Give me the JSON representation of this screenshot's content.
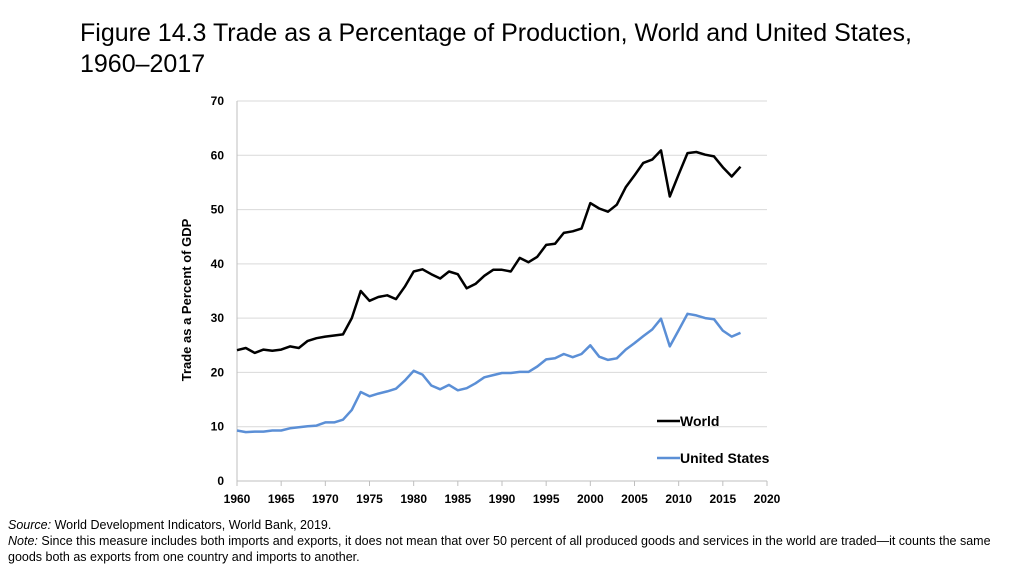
{
  "title_line1": "Figure 14.3 Trade as a Percentage of Production, World and United States,",
  "title_line2": "1960–2017",
  "footer": {
    "source_label": "Source:",
    "source_text": "World Development Indicators, World Bank, 2019.",
    "note_label": "Note:",
    "note_text": "Since this measure includes both imports and exports, it does not mean that over 50 percent of all produced goods and services in the world are traded—it counts the same goods both as exports from one country and imports to another."
  },
  "chart_data": {
    "type": "line",
    "title": "Trade as a Percentage of Production, World and United States, 1960–2017",
    "xlabel": "",
    "ylabel": "Trade as a Percent of GDP",
    "xlim": [
      1960,
      2020
    ],
    "ylim": [
      0,
      70
    ],
    "xticks": [
      1960,
      1965,
      1970,
      1975,
      1980,
      1985,
      1990,
      1995,
      2000,
      2005,
      2010,
      2015,
      2020
    ],
    "yticks": [
      0,
      10,
      20,
      30,
      40,
      50,
      60,
      70
    ],
    "grid": true,
    "legend_position": "bottom-right",
    "x": [
      1960,
      1961,
      1962,
      1963,
      1964,
      1965,
      1966,
      1967,
      1968,
      1969,
      1970,
      1971,
      1972,
      1973,
      1974,
      1975,
      1976,
      1977,
      1978,
      1979,
      1980,
      1981,
      1982,
      1983,
      1984,
      1985,
      1986,
      1987,
      1988,
      1989,
      1990,
      1991,
      1992,
      1993,
      1994,
      1995,
      1996,
      1997,
      1998,
      1999,
      2000,
      2001,
      2002,
      2003,
      2004,
      2005,
      2006,
      2007,
      2008,
      2009,
      2010,
      2011,
      2012,
      2013,
      2014,
      2015,
      2016,
      2017
    ],
    "series": [
      {
        "name": "World",
        "color": "#000000",
        "values": [
          24.1,
          24.5,
          23.6,
          24.2,
          24.0,
          24.2,
          24.8,
          24.5,
          25.8,
          26.3,
          26.6,
          26.8,
          27.0,
          30.0,
          35.0,
          33.2,
          33.9,
          34.2,
          33.5,
          35.8,
          38.6,
          39.0,
          38.1,
          37.3,
          38.6,
          38.1,
          35.5,
          36.3,
          37.8,
          38.9,
          38.9,
          38.6,
          41.1,
          40.3,
          41.3,
          43.5,
          43.7,
          45.7,
          46.0,
          46.5,
          51.2,
          50.2,
          49.6,
          50.9,
          54.1,
          56.3,
          58.6,
          59.2,
          60.9,
          52.4,
          56.5,
          60.4,
          60.6,
          60.1,
          59.8,
          57.8,
          56.1,
          57.9
        ]
      },
      {
        "name": "United States",
        "color": "#5B8FD6",
        "values": [
          9.3,
          9.0,
          9.1,
          9.1,
          9.3,
          9.3,
          9.7,
          9.9,
          10.1,
          10.2,
          10.8,
          10.8,
          11.3,
          13.1,
          16.4,
          15.6,
          16.1,
          16.5,
          17.0,
          18.5,
          20.3,
          19.6,
          17.6,
          16.9,
          17.7,
          16.7,
          17.1,
          18.0,
          19.1,
          19.5,
          19.9,
          19.9,
          20.1,
          20.1,
          21.1,
          22.4,
          22.6,
          23.4,
          22.8,
          23.4,
          25.0,
          22.9,
          22.3,
          22.6,
          24.2,
          25.4,
          26.7,
          27.9,
          29.9,
          24.8,
          27.8,
          30.8,
          30.5,
          30.0,
          29.8,
          27.7,
          26.6,
          27.3
        ]
      }
    ]
  }
}
